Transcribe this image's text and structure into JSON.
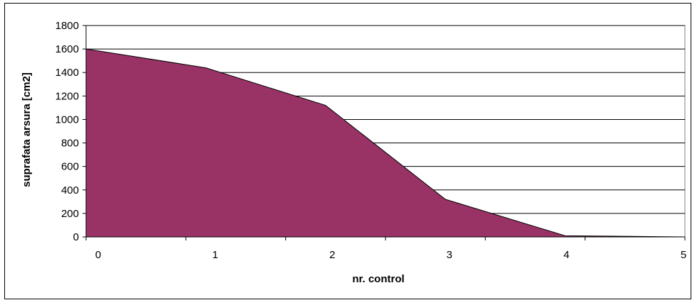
{
  "chart_data": {
    "type": "area",
    "x": [
      0,
      1,
      2,
      3,
      4,
      5
    ],
    "series": [
      {
        "values": [
          1600,
          1440,
          1120,
          320,
          10,
          0
        ],
        "color": "#993366"
      }
    ],
    "xlabel": "nr. control",
    "ylabel": "suprafata arsura [cm2]",
    "xlim": [
      0,
      5
    ],
    "ylim": [
      0,
      1800
    ],
    "ytick_step": 200,
    "grid": "horizontal",
    "legend": "none",
    "colors": {
      "area": "#993366",
      "line": "#000000",
      "grid": "#000000",
      "plot_border": "#808080",
      "background": "#ffffff"
    }
  }
}
